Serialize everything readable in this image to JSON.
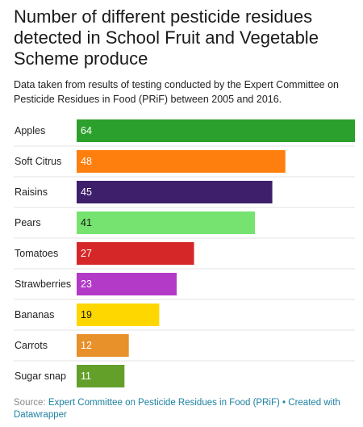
{
  "chart_data": {
    "type": "bar",
    "orientation": "horizontal",
    "title": "Number of different pesticide residues detected in School Fruit and Vegetable Scheme produce",
    "subtitle": "Data taken from results of testing conducted by the Expert Committee on Pesticide Residues in Food (PRiF) between 2005 and 2016.",
    "categories": [
      "Apples",
      "Soft Citrus",
      "Raisins",
      "Pears",
      "Tomatoes",
      "Strawberries",
      "Bananas",
      "Carrots",
      "Sugar snap"
    ],
    "values": [
      64,
      48,
      45,
      41,
      27,
      23,
      19,
      12,
      11
    ],
    "colors": [
      "#2ca02c",
      "#ff7f0e",
      "#3e1f6b",
      "#76e26f",
      "#d62728",
      "#b23ac6",
      "#ffd700",
      "#e8902a",
      "#62a02a"
    ],
    "label_colors": [
      "#ffffff",
      "#ffffff",
      "#ffffff",
      "#181818",
      "#ffffff",
      "#ffffff",
      "#181818",
      "#ffffff",
      "#ffffff"
    ],
    "xlim": [
      0,
      64
    ],
    "grid": false,
    "legend": "none"
  },
  "footer": {
    "source_label": "Source:",
    "source_link": "Expert Committee on Pesticide Residues in Food (PRiF)",
    "separator": "•",
    "credit": "Created with Datawrapper"
  }
}
